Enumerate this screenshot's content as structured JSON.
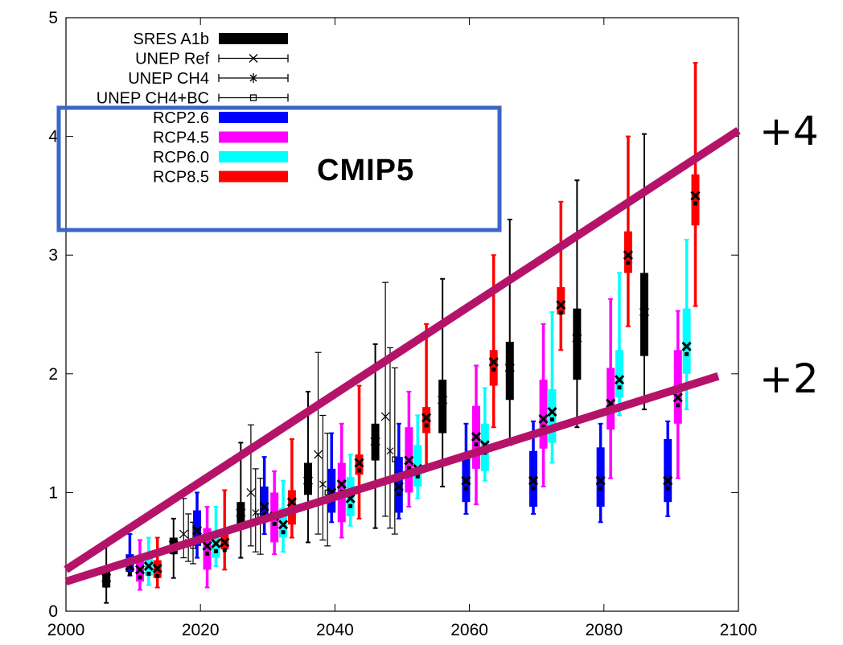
{
  "chart_data": {
    "type": "box",
    "title": "",
    "xlabel": "",
    "ylabel": "",
    "xlim": [
      2000,
      2100
    ],
    "ylim": [
      0,
      5
    ],
    "x_ticks": [
      2000,
      2020,
      2040,
      2060,
      2080,
      2100
    ],
    "y_ticks": [
      0,
      1,
      2,
      3,
      4,
      5
    ],
    "grid": false,
    "legend_position": "top-left",
    "legend": [
      {
        "name": "SRES A1b",
        "color": "#000000",
        "style": "thick-bar"
      },
      {
        "name": "UNEP Ref",
        "color": "#000000",
        "style": "errorbar-x"
      },
      {
        "name": "UNEP CH4",
        "color": "#000000",
        "style": "errorbar-star"
      },
      {
        "name": "UNEP CH4+BC",
        "color": "#000000",
        "style": "errorbar-square"
      },
      {
        "name": "RCP2.6",
        "color": "#0000ff",
        "style": "thick-bar"
      },
      {
        "name": "RCP4.5",
        "color": "#ff00ff",
        "style": "thick-bar"
      },
      {
        "name": "RCP6.0",
        "color": "#00ffff",
        "style": "thick-bar"
      },
      {
        "name": "RCP8.5",
        "color": "#ff0000",
        "style": "thick-bar"
      }
    ],
    "annotations": {
      "box_label": "CMIP5",
      "upper_line_label": "+4",
      "lower_line_label": "+2",
      "box_color": "#3a66c8",
      "trend_color": "#b5136a"
    },
    "trend_lines": [
      {
        "label": "+4",
        "from": [
          2000,
          0.35
        ],
        "to": [
          2100,
          4.05
        ]
      },
      {
        "label": "+2",
        "from": [
          2000,
          0.25
        ],
        "to": [
          2097,
          1.98
        ]
      }
    ],
    "series": [
      {
        "name": "SRES A1b",
        "color": "#000000",
        "boxes": [
          {
            "x": 2006,
            "whisker_low": 0.07,
            "q1": 0.2,
            "median": 0.28,
            "q3": 0.35,
            "whisker_high": 0.55
          },
          {
            "x": 2016,
            "whisker_low": 0.28,
            "q1": 0.48,
            "median": 0.56,
            "q3": 0.62,
            "whisker_high": 0.78
          },
          {
            "x": 2026,
            "whisker_low": 0.45,
            "q1": 0.72,
            "median": 0.83,
            "q3": 0.92,
            "whisker_high": 1.42
          },
          {
            "x": 2036,
            "whisker_low": 0.58,
            "q1": 0.98,
            "median": 1.1,
            "q3": 1.25,
            "whisker_high": 1.85
          },
          {
            "x": 2046,
            "whisker_low": 0.7,
            "q1": 1.27,
            "median": 1.43,
            "q3": 1.58,
            "whisker_high": 2.25
          },
          {
            "x": 2056,
            "whisker_low": 1.05,
            "q1": 1.5,
            "median": 1.78,
            "q3": 1.95,
            "whisker_high": 2.8
          },
          {
            "x": 2066,
            "whisker_low": 1.4,
            "q1": 1.78,
            "median": 2.05,
            "q3": 2.27,
            "whisker_high": 3.3
          },
          {
            "x": 2076,
            "whisker_low": 1.55,
            "q1": 1.95,
            "median": 2.3,
            "q3": 2.55,
            "whisker_high": 3.63
          },
          {
            "x": 2086,
            "whisker_low": 1.7,
            "q1": 2.15,
            "median": 2.52,
            "q3": 2.85,
            "whisker_high": 4.02
          }
        ]
      },
      {
        "name": "UNEP Ref",
        "color": "#000000",
        "points": [
          {
            "x": 2017.5,
            "low": 0.45,
            "mean": 0.65,
            "high": 0.95
          },
          {
            "x": 2027.5,
            "low": 0.55,
            "mean": 1.0,
            "high": 1.57
          },
          {
            "x": 2037.5,
            "low": 0.65,
            "mean": 1.32,
            "high": 2.18
          },
          {
            "x": 2047.5,
            "low": 0.8,
            "mean": 1.64,
            "high": 2.77
          }
        ]
      },
      {
        "name": "UNEP CH4",
        "color": "#000000",
        "points": [
          {
            "x": 2018.2,
            "low": 0.42,
            "mean": 0.58,
            "high": 0.82
          },
          {
            "x": 2028.2,
            "low": 0.5,
            "mean": 0.83,
            "high": 1.2
          },
          {
            "x": 2038.2,
            "low": 0.6,
            "mean": 1.07,
            "high": 1.65
          },
          {
            "x": 2048.2,
            "low": 0.7,
            "mean": 1.35,
            "high": 2.22
          }
        ]
      },
      {
        "name": "UNEP CH4+BC",
        "color": "#000000",
        "points": [
          {
            "x": 2018.9,
            "low": 0.4,
            "mean": 0.55,
            "high": 0.75
          },
          {
            "x": 2028.9,
            "low": 0.48,
            "mean": 0.8,
            "high": 1.12
          },
          {
            "x": 2038.9,
            "low": 0.55,
            "mean": 1.0,
            "high": 1.5
          },
          {
            "x": 2048.9,
            "low": 0.65,
            "mean": 1.28,
            "high": 2.05
          }
        ]
      },
      {
        "name": "RCP2.6",
        "color": "#0000ff",
        "boxes": [
          {
            "x": 2009.5,
            "whisker_low": 0.3,
            "q1": 0.33,
            "median": 0.38,
            "q3": 0.48,
            "whisker_high": 0.65
          },
          {
            "x": 2019.5,
            "whisker_low": 0.45,
            "q1": 0.55,
            "median": 0.68,
            "q3": 0.85,
            "whisker_high": 1.0
          },
          {
            "x": 2029.5,
            "whisker_low": 0.65,
            "q1": 0.75,
            "median": 0.88,
            "q3": 1.05,
            "whisker_high": 1.3
          },
          {
            "x": 2039.5,
            "whisker_low": 0.75,
            "q1": 0.83,
            "median": 1.0,
            "q3": 1.2,
            "whisker_high": 1.5
          },
          {
            "x": 2049.5,
            "whisker_low": 0.78,
            "q1": 0.83,
            "median": 1.05,
            "q3": 1.3,
            "whisker_high": 1.58
          },
          {
            "x": 2059.5,
            "whisker_low": 0.82,
            "q1": 0.92,
            "median": 1.1,
            "q3": 1.3,
            "whisker_high": 1.58
          },
          {
            "x": 2069.5,
            "whisker_low": 0.82,
            "q1": 0.88,
            "median": 1.1,
            "q3": 1.35,
            "whisker_high": 1.6
          },
          {
            "x": 2079.5,
            "whisker_low": 0.75,
            "q1": 0.88,
            "median": 1.1,
            "q3": 1.38,
            "whisker_high": 1.58
          },
          {
            "x": 2089.5,
            "whisker_low": 0.8,
            "q1": 0.92,
            "median": 1.1,
            "q3": 1.45,
            "whisker_high": 1.6
          }
        ]
      },
      {
        "name": "RCP4.5",
        "color": "#ff00ff",
        "boxes": [
          {
            "x": 2011,
            "whisker_low": 0.18,
            "q1": 0.25,
            "median": 0.35,
            "q3": 0.42,
            "whisker_high": 0.6
          },
          {
            "x": 2021,
            "whisker_low": 0.2,
            "q1": 0.35,
            "median": 0.55,
            "q3": 0.7,
            "whisker_high": 0.88
          },
          {
            "x": 2031,
            "whisker_low": 0.48,
            "q1": 0.58,
            "median": 0.8,
            "q3": 1.0,
            "whisker_high": 1.18
          },
          {
            "x": 2041,
            "whisker_low": 0.62,
            "q1": 0.75,
            "median": 1.07,
            "q3": 1.25,
            "whisker_high": 1.58
          },
          {
            "x": 2051,
            "whisker_low": 0.88,
            "q1": 1.0,
            "median": 1.27,
            "q3": 1.55,
            "whisker_high": 1.85
          },
          {
            "x": 2061,
            "whisker_low": 0.9,
            "q1": 1.2,
            "median": 1.47,
            "q3": 1.73,
            "whisker_high": 2.07
          },
          {
            "x": 2071,
            "whisker_low": 1.05,
            "q1": 1.37,
            "median": 1.62,
            "q3": 1.95,
            "whisker_high": 2.42
          },
          {
            "x": 2081,
            "whisker_low": 1.12,
            "q1": 1.53,
            "median": 1.75,
            "q3": 2.05,
            "whisker_high": 2.63
          },
          {
            "x": 2091,
            "whisker_low": 1.12,
            "q1": 1.58,
            "median": 1.8,
            "q3": 2.2,
            "whisker_high": 2.53
          }
        ]
      },
      {
        "name": "RCP6.0",
        "color": "#00ffff",
        "boxes": [
          {
            "x": 2012.3,
            "whisker_low": 0.22,
            "q1": 0.3,
            "median": 0.38,
            "q3": 0.45,
            "whisker_high": 0.62
          },
          {
            "x": 2022.3,
            "whisker_low": 0.38,
            "q1": 0.45,
            "median": 0.57,
            "q3": 0.68,
            "whisker_high": 0.88
          },
          {
            "x": 2032.3,
            "whisker_low": 0.5,
            "q1": 0.62,
            "median": 0.73,
            "q3": 0.87,
            "whisker_high": 1.1
          },
          {
            "x": 2042.3,
            "whisker_low": 0.72,
            "q1": 0.8,
            "median": 0.95,
            "q3": 1.13,
            "whisker_high": 1.32
          },
          {
            "x": 2052.3,
            "whisker_low": 0.95,
            "q1": 1.05,
            "median": 1.2,
            "q3": 1.4,
            "whisker_high": 1.65
          },
          {
            "x": 2062.3,
            "whisker_low": 1.1,
            "q1": 1.18,
            "median": 1.4,
            "q3": 1.58,
            "whisker_high": 1.88
          },
          {
            "x": 2072.3,
            "whisker_low": 1.25,
            "q1": 1.42,
            "median": 1.68,
            "q3": 1.87,
            "whisker_high": 2.52
          },
          {
            "x": 2082.3,
            "whisker_low": 1.65,
            "q1": 1.8,
            "median": 1.95,
            "q3": 2.2,
            "whisker_high": 2.85
          },
          {
            "x": 2092.3,
            "whisker_low": 1.7,
            "q1": 2.0,
            "median": 2.23,
            "q3": 2.55,
            "whisker_high": 3.13
          }
        ]
      },
      {
        "name": "RCP8.5",
        "color": "#ff0000",
        "boxes": [
          {
            "x": 2013.6,
            "whisker_low": 0.2,
            "q1": 0.28,
            "median": 0.36,
            "q3": 0.43,
            "whisker_high": 0.62
          },
          {
            "x": 2023.6,
            "whisker_low": 0.35,
            "q1": 0.52,
            "median": 0.58,
            "q3": 0.65,
            "whisker_high": 1.02
          },
          {
            "x": 2033.6,
            "whisker_low": 0.62,
            "q1": 0.73,
            "median": 0.92,
            "q3": 1.02,
            "whisker_high": 1.45
          },
          {
            "x": 2043.6,
            "whisker_low": 0.78,
            "q1": 1.15,
            "median": 1.25,
            "q3": 1.32,
            "whisker_high": 1.9
          },
          {
            "x": 2053.6,
            "whisker_low": 1.2,
            "q1": 1.5,
            "median": 1.63,
            "q3": 1.72,
            "whisker_high": 2.42
          },
          {
            "x": 2063.6,
            "whisker_low": 1.55,
            "q1": 1.9,
            "median": 2.1,
            "q3": 2.2,
            "whisker_high": 3.0
          },
          {
            "x": 2073.6,
            "whisker_low": 2.2,
            "q1": 2.5,
            "median": 2.58,
            "q3": 2.73,
            "whisker_high": 3.45
          },
          {
            "x": 2083.6,
            "whisker_low": 2.4,
            "q1": 2.85,
            "median": 3.0,
            "q3": 3.2,
            "whisker_high": 4.0
          },
          {
            "x": 2093.6,
            "whisker_low": 2.57,
            "q1": 3.25,
            "median": 3.5,
            "q3": 3.68,
            "whisker_high": 4.62
          }
        ]
      }
    ]
  }
}
